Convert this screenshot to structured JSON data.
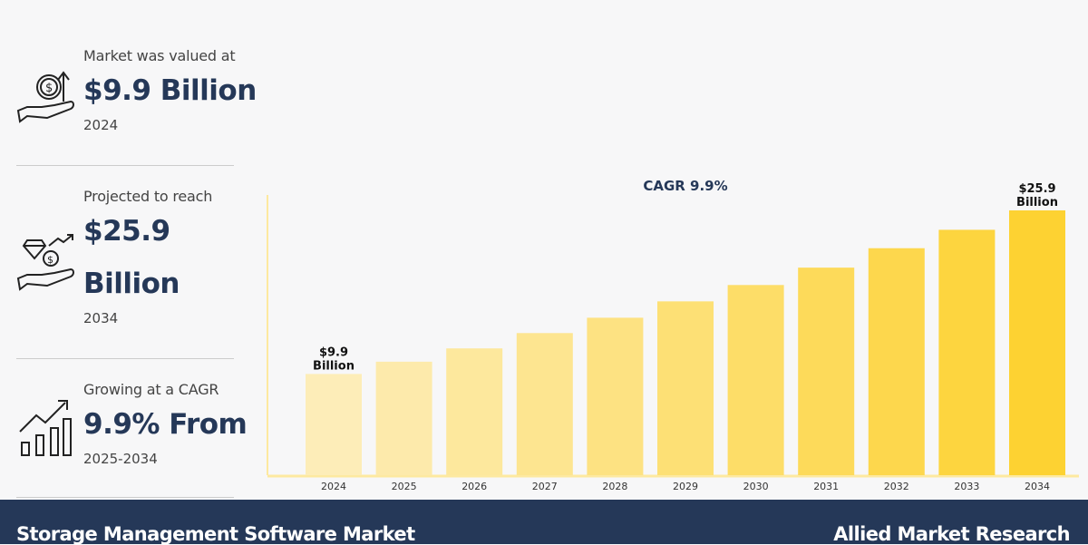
{
  "stats": [
    {
      "label": "Market was valued at",
      "value": "$9.9 Billion",
      "year": "2024",
      "icon": "money-hand-icon"
    },
    {
      "label": "Projected to reach",
      "value_line1": "$25.9",
      "value_line2": "Billion",
      "year": "2034",
      "icon": "diamond-hand-icon"
    },
    {
      "label": "Growing at a CAGR",
      "value": "9.9% From",
      "year": "2025-2034",
      "icon": "growth-chart-icon"
    }
  ],
  "chart_data": {
    "type": "bar",
    "title": "CAGR 9.9%",
    "categories": [
      "2024",
      "2025",
      "2026",
      "2027",
      "2028",
      "2029",
      "2030",
      "2031",
      "2032",
      "2033",
      "2034"
    ],
    "values": [
      9.9,
      11.1,
      12.4,
      13.9,
      15.4,
      17.0,
      18.6,
      20.3,
      22.2,
      24.0,
      25.9
    ],
    "data_labels": {
      "first": [
        "$9.9",
        "Billion"
      ],
      "last": [
        "$25.9",
        "Billion"
      ]
    },
    "ylim": [
      0,
      27
    ],
    "grid": false,
    "colors": {
      "start": "#fdedb8",
      "end": "#fdd232",
      "axis": "#fde9a0",
      "label": "#253858"
    }
  },
  "footer": {
    "left": "Storage Management Software Market",
    "right": "Allied Market Research",
    "bg": "#253858"
  }
}
